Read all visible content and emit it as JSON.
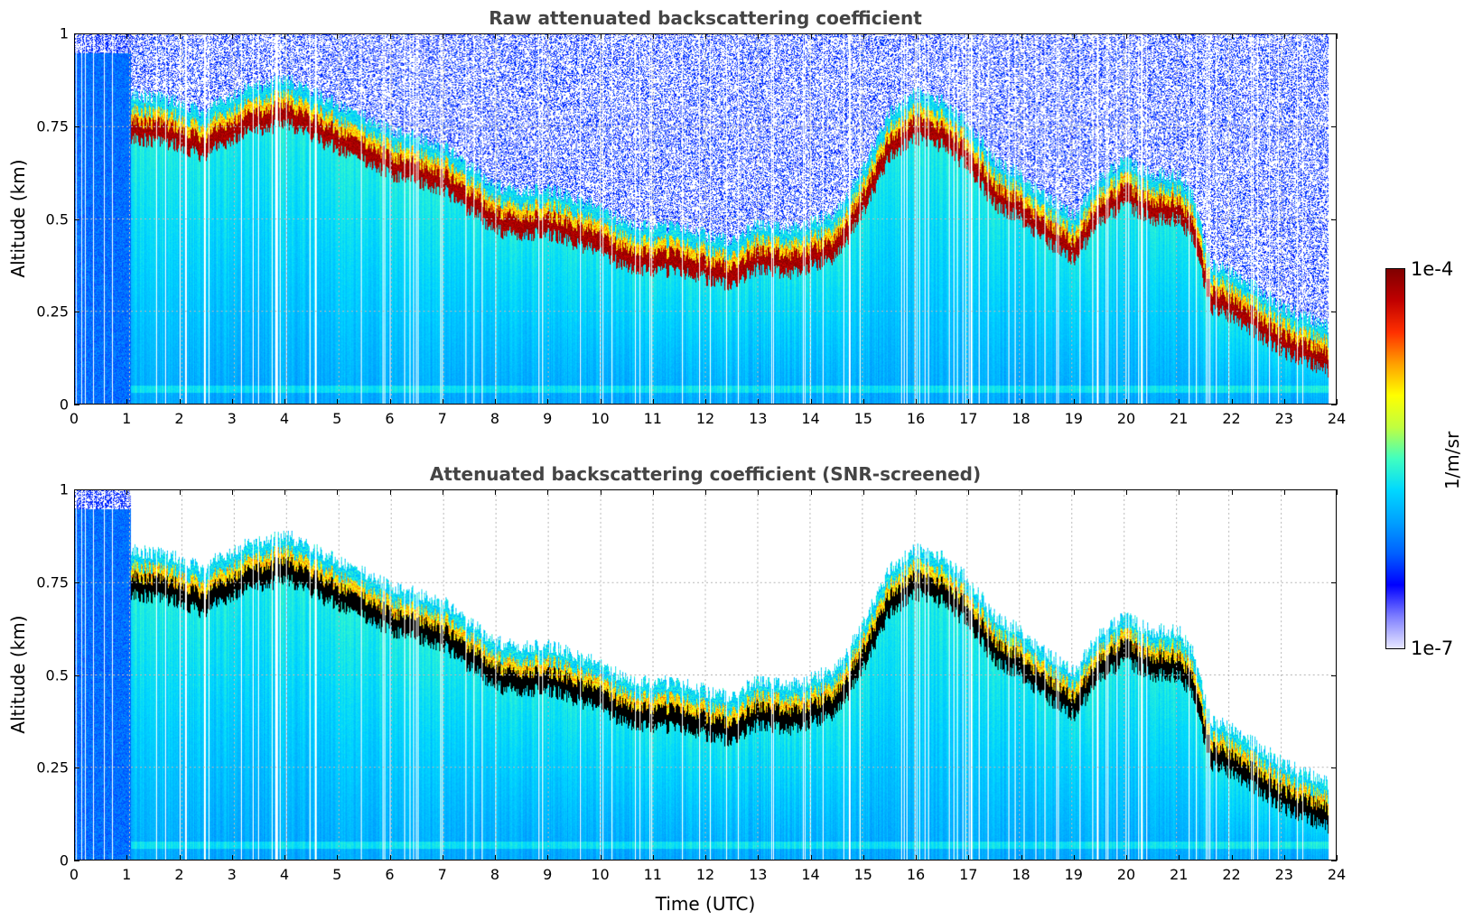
{
  "chart_data": [
    {
      "type": "heatmap",
      "title": "Raw attenuated backscattering coefficient",
      "xlabel": "",
      "ylabel": "Altitude (km)",
      "xlim": [
        0,
        24
      ],
      "ylim": [
        0,
        1
      ],
      "xticks": [
        "0",
        "1",
        "2",
        "3",
        "4",
        "5",
        "6",
        "7",
        "8",
        "9",
        "10",
        "11",
        "12",
        "13",
        "14",
        "15",
        "16",
        "17",
        "18",
        "19",
        "20",
        "21",
        "22",
        "23",
        "24"
      ],
      "yticks": [
        "0",
        "0.25",
        "0.5",
        "0.75",
        "1"
      ],
      "grid": true,
      "cloud_base_km": [
        [
          1.1,
          0.78
        ],
        [
          2.0,
          0.76
        ],
        [
          2.4,
          0.73
        ],
        [
          3.0,
          0.78
        ],
        [
          4.0,
          0.82
        ],
        [
          5.0,
          0.75
        ],
        [
          6.0,
          0.68
        ],
        [
          6.5,
          0.66
        ],
        [
          7.0,
          0.64
        ],
        [
          7.5,
          0.58
        ],
        [
          8.2,
          0.52
        ],
        [
          9.0,
          0.52
        ],
        [
          9.8,
          0.48
        ],
        [
          10.5,
          0.43
        ],
        [
          11.0,
          0.42
        ],
        [
          11.5,
          0.42
        ],
        [
          12.0,
          0.4
        ],
        [
          12.5,
          0.38
        ],
        [
          13.0,
          0.43
        ],
        [
          13.5,
          0.41
        ],
        [
          14.0,
          0.43
        ],
        [
          14.5,
          0.46
        ],
        [
          15.0,
          0.58
        ],
        [
          15.5,
          0.73
        ],
        [
          16.0,
          0.78
        ],
        [
          16.5,
          0.76
        ],
        [
          17.0,
          0.7
        ],
        [
          17.5,
          0.6
        ],
        [
          18.0,
          0.56
        ],
        [
          18.5,
          0.5
        ],
        [
          19.0,
          0.45
        ],
        [
          19.5,
          0.55
        ],
        [
          20.0,
          0.6
        ],
        [
          20.5,
          0.56
        ],
        [
          21.0,
          0.56
        ],
        [
          21.3,
          0.5
        ],
        [
          21.6,
          0.32
        ],
        [
          22.0,
          0.3
        ],
        [
          22.5,
          0.25
        ],
        [
          23.0,
          0.2
        ],
        [
          23.5,
          0.17
        ],
        [
          23.8,
          0.15
        ]
      ],
      "colorbar": {
        "min_label": "1e-7",
        "max_label": "1e-4",
        "unit": "1/m/sr"
      }
    },
    {
      "type": "heatmap",
      "title": "Attenuated backscattering coefficient (SNR-screened)",
      "xlabel": "Time (UTC)",
      "ylabel": "Altitude (km)",
      "xlim": [
        0,
        24
      ],
      "ylim": [
        0,
        1
      ],
      "xticks": [
        "0",
        "1",
        "2",
        "3",
        "4",
        "5",
        "6",
        "7",
        "8",
        "9",
        "10",
        "11",
        "12",
        "13",
        "14",
        "15",
        "16",
        "17",
        "18",
        "19",
        "20",
        "21",
        "22",
        "23",
        "24"
      ],
      "yticks": [
        "0",
        "0.25",
        "0.5",
        "0.75",
        "1"
      ],
      "grid": true,
      "colorbar": {
        "min_label": "1e-7",
        "max_label": "1e-4",
        "unit": "1/m/sr"
      }
    }
  ],
  "colors": {
    "colormap": [
      "#e8e8ff",
      "#7f7fff",
      "#0000ff",
      "#0060ff",
      "#00a0ff",
      "#00d8ff",
      "#40ffc0",
      "#c0ff40",
      "#ffff00",
      "#ffa000",
      "#ff3000",
      "#c00000",
      "#800000"
    ],
    "saturated": "#000000",
    "title": "#444444"
  }
}
